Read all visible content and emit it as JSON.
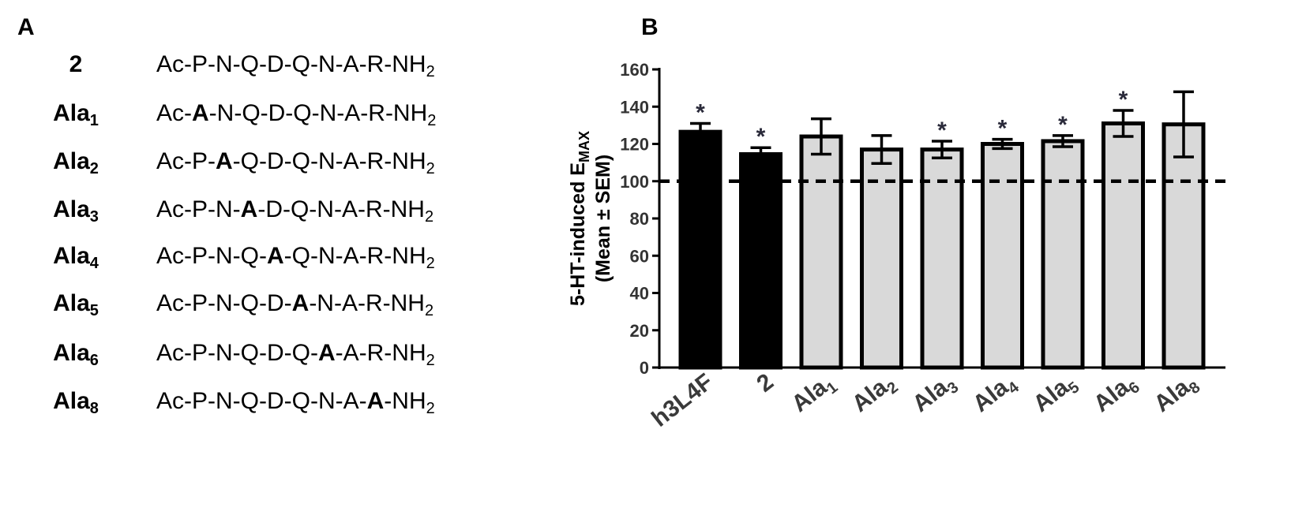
{
  "panels": {
    "a": "A",
    "b": "B"
  },
  "sequences": [
    {
      "name": "2",
      "name_sub": "",
      "pre": "Ac-P-N-Q-D-Q-N-A-R-NH",
      "bold": "",
      "post": "",
      "sub": "2"
    },
    {
      "name": "Ala",
      "name_sub": "1",
      "pre": "Ac-",
      "bold": "A",
      "post": "-N-Q-D-Q-N-A-R-NH",
      "sub": "2"
    },
    {
      "name": "Ala",
      "name_sub": "2",
      "pre": "Ac-P-",
      "bold": "A",
      "post": "-Q-D-Q-N-A-R-NH",
      "sub": "2"
    },
    {
      "name": "Ala",
      "name_sub": "3",
      "pre": "Ac-P-N-",
      "bold": "A",
      "post": "-D-Q-N-A-R-NH",
      "sub": "2"
    },
    {
      "name": "Ala",
      "name_sub": "4",
      "pre": "Ac-P-N-Q-",
      "bold": "A",
      "post": "-Q-N-A-R-NH",
      "sub": "2"
    },
    {
      "name": "Ala",
      "name_sub": "5",
      "pre": "Ac-P-N-Q-D-",
      "bold": "A",
      "post": "-N-A-R-NH",
      "sub": "2"
    },
    {
      "name": "Ala",
      "name_sub": "6",
      "pre": "Ac-P-N-Q-D-Q-",
      "bold": "A",
      "post": "-A-R-NH",
      "sub": "2"
    },
    {
      "name": "Ala",
      "name_sub": "8",
      "pre": "Ac-P-N-Q-D-Q-N-A-",
      "bold": "A",
      "post": "-NH",
      "sub": "2"
    }
  ],
  "chart_data": {
    "type": "bar",
    "categories": [
      "h3L4F",
      "2",
      "Ala1",
      "Ala2",
      "Ala3",
      "Ala4",
      "Ala5",
      "Ala6",
      "Ala8"
    ],
    "category_labels": [
      {
        "main": "h3L4F",
        "sub": ""
      },
      {
        "main": "2",
        "sub": ""
      },
      {
        "main": "Ala",
        "sub": "1"
      },
      {
        "main": "Ala",
        "sub": "2"
      },
      {
        "main": "Ala",
        "sub": "3"
      },
      {
        "main": "Ala",
        "sub": "4"
      },
      {
        "main": "Ala",
        "sub": "5"
      },
      {
        "main": "Ala",
        "sub": "6"
      },
      {
        "main": "Ala",
        "sub": "8"
      }
    ],
    "values": [
      126.5,
      114.5,
      124,
      117,
      117,
      120,
      121.5,
      131,
      130.5
    ],
    "errors": [
      4.5,
      3.5,
      9.5,
      7.5,
      4.5,
      2.5,
      3,
      7,
      17.5
    ],
    "significant": [
      true,
      true,
      false,
      false,
      true,
      true,
      true,
      true,
      false
    ],
    "significance_marker": "*",
    "bar_colors": [
      "#000000",
      "#000000",
      "#d9d9d9",
      "#d9d9d9",
      "#d9d9d9",
      "#d9d9d9",
      "#d9d9d9",
      "#d9d9d9",
      "#d9d9d9"
    ],
    "ylabel_line1": "5-HT-induced E",
    "ylabel_line1_sub": "MAX",
    "ylabel_line2": "(Mean ± SEM)",
    "ylim": [
      0,
      160
    ],
    "yticks": [
      0,
      20,
      40,
      60,
      80,
      100,
      120,
      140,
      160
    ],
    "reference_line": 100,
    "grid": false
  }
}
